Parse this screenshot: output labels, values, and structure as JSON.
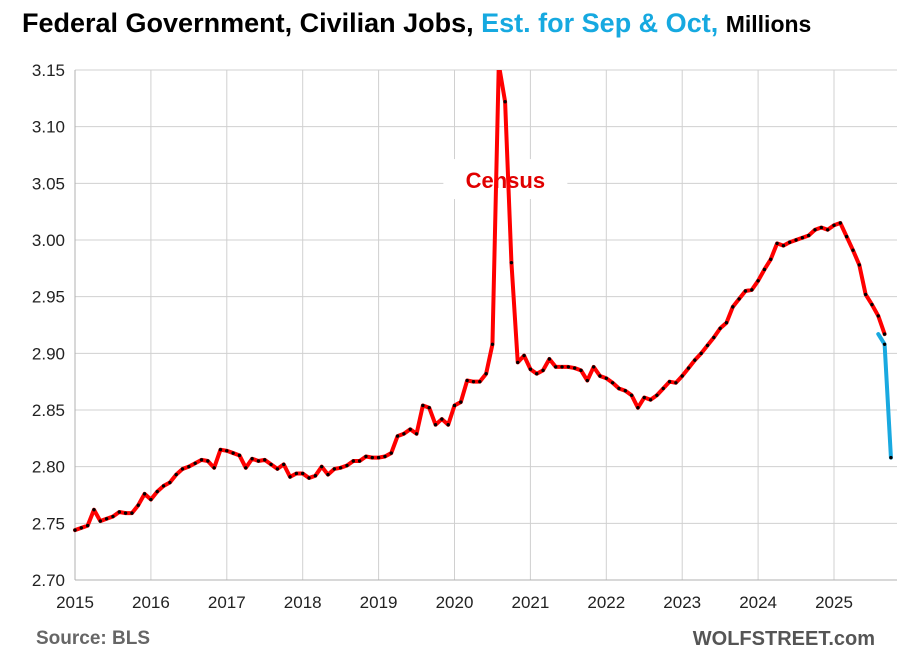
{
  "title": {
    "main": "Federal Government, Civilian Jobs,",
    "estimate": "Est. for Sep & Oct,",
    "unit": "Millions"
  },
  "footer": {
    "source": "Source: BLS",
    "brand": "WOLFSTREET.com"
  },
  "colors": {
    "actual_line": "#ff0000",
    "estimate_line": "#19a9e0",
    "markers": "#000000",
    "grid": "#d0d0d0"
  },
  "chart_data": {
    "type": "line",
    "ylim": [
      2.7,
      3.15
    ],
    "yticks": [
      2.7,
      2.75,
      2.8,
      2.85,
      2.9,
      2.95,
      3.0,
      3.05,
      3.1,
      3.15
    ],
    "ytick_labels": [
      "2.70",
      "2.75",
      "2.80",
      "2.85",
      "2.90",
      "2.95",
      "3.00",
      "3.05",
      "3.10",
      "3.15"
    ],
    "xlim": [
      2015,
      2025.83
    ],
    "xticks": [
      2015,
      2016,
      2017,
      2018,
      2019,
      2020,
      2021,
      2022,
      2023,
      2024,
      2025
    ],
    "xtick_labels": [
      "2015",
      "2016",
      "2017",
      "2018",
      "2019",
      "2020",
      "2021",
      "2022",
      "2023",
      "2024",
      "2025"
    ],
    "grid": true,
    "annotations": [
      {
        "text": "Census",
        "x": 2020.67,
        "y": 3.052,
        "color": "#e00000"
      }
    ],
    "series": [
      {
        "style": "actual",
        "start": "2015-01",
        "values": [
          2.744,
          2.746,
          2.748,
          2.762,
          2.752,
          2.754,
          2.756,
          2.76,
          2.759,
          2.759,
          2.766,
          2.776,
          2.771,
          2.778,
          2.783,
          2.786,
          2.793,
          2.798,
          2.8,
          2.803,
          2.806,
          2.805,
          2.799,
          2.815,
          2.814,
          2.812,
          2.81,
          2.799,
          2.807,
          2.805,
          2.806,
          2.802,
          2.798,
          2.802,
          2.791,
          2.794,
          2.794,
          2.79,
          2.792,
          2.8,
          2.793,
          2.798,
          2.799,
          2.801,
          2.805,
          2.805,
          2.809,
          2.808,
          2.808,
          2.809,
          2.812,
          2.827,
          2.829,
          2.833,
          2.829,
          2.854,
          2.852,
          2.837,
          2.842,
          2.837,
          2.854,
          2.857,
          2.876,
          2.875,
          2.875,
          2.882,
          2.908,
          3.155,
          3.122,
          2.98,
          2.892,
          2.898,
          2.886,
          2.882,
          2.885,
          2.895,
          2.888,
          2.888,
          2.888,
          2.887,
          2.885,
          2.876,
          2.888,
          2.88,
          2.878,
          2.874,
          2.869,
          2.867,
          2.863,
          2.852,
          2.861,
          2.859,
          2.863,
          2.869,
          2.875,
          2.874,
          2.88,
          2.887,
          2.894,
          2.9,
          2.907,
          2.914,
          2.922,
          2.927,
          2.941,
          2.948,
          2.955,
          2.956,
          2.964,
          2.974,
          2.983,
          2.997,
          2.995,
          2.998,
          3.0,
          3.002,
          3.004,
          3.009,
          3.011,
          3.009,
          3.013,
          3.015,
          3.003,
          2.991,
          2.978,
          2.952,
          2.943,
          2.933,
          2.917
        ]
      },
      {
        "style": "estimate",
        "start": "2025-08",
        "values": [
          2.917,
          2.908,
          2.808
        ]
      }
    ]
  }
}
